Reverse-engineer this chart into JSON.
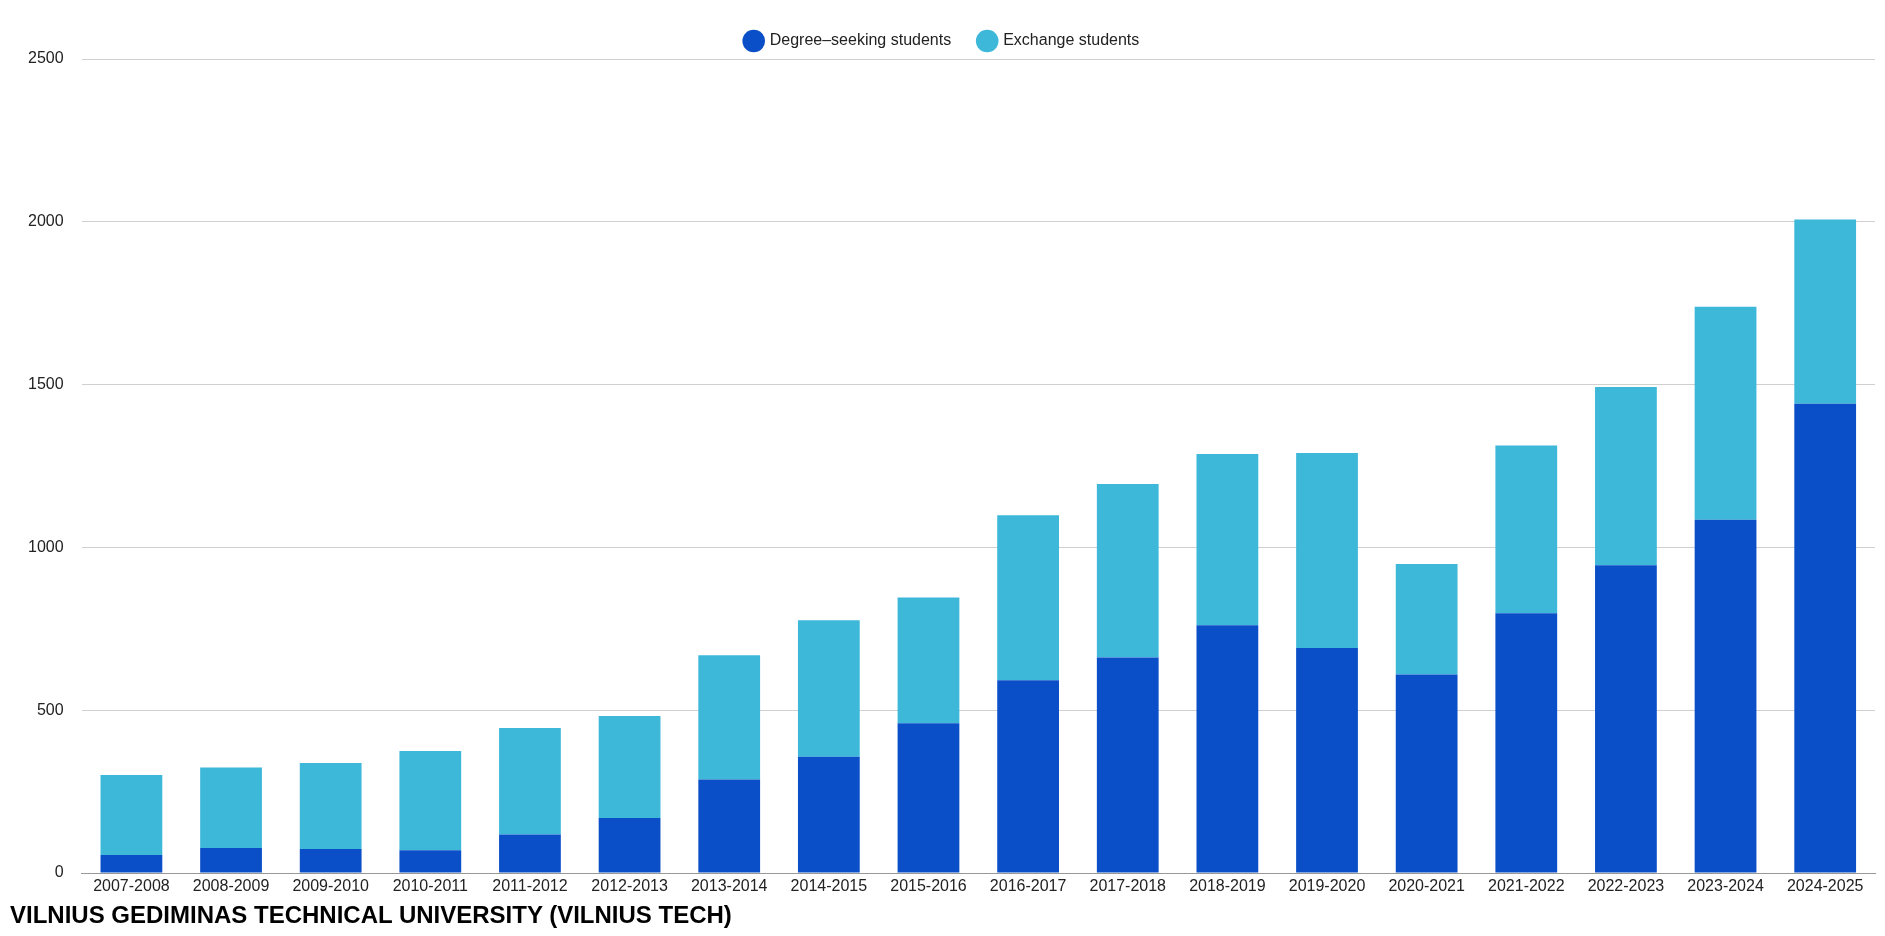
{
  "chart_data": {
    "type": "bar",
    "title": "VILNIUS GEDIMINAS TECHNICAL UNIVERSITY (VILNIUS TECH)",
    "categories": [
      "2007-2008",
      "2008-2009",
      "2009-2010",
      "2010-2011",
      "2011-2012",
      "2012-2013",
      "2013-2014",
      "2014-2015",
      "2015-2016",
      "2016-2017",
      "2017-2018",
      "2018-2019",
      "2019-2020",
      "2020-2021",
      "2021-2022",
      "2022-2023",
      "2023-2024",
      "2024-2025"
    ],
    "series": [
      {
        "name": "Degree–seeking students",
        "color": "#0b4fc8",
        "values": [
          55,
          77,
          74,
          70,
          118,
          169,
          287,
          357,
          460,
          592,
          662,
          761,
          691,
          610,
          798,
          945,
          1085,
          1441
        ]
      },
      {
        "name": "Exchange students",
        "color": "#3db8d9",
        "values": [
          246,
          247,
          264,
          305,
          327,
          313,
          382,
          419,
          386,
          507,
          533,
          526,
          599,
          339,
          515,
          548,
          654,
          566
        ]
      }
    ],
    "stacked": true,
    "ylim": [
      0,
      2500
    ],
    "yticks": [
      0,
      500,
      1000,
      1500,
      2000,
      2500
    ],
    "grid": "y",
    "legend": "top"
  }
}
